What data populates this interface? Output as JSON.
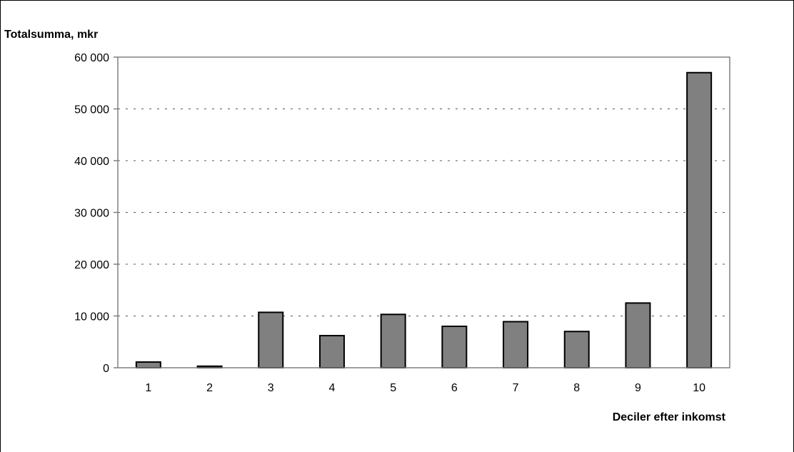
{
  "chart_data": {
    "type": "bar",
    "title": "",
    "ylabel": "Totalsumma, mkr",
    "xlabel": "Deciler efter inkomst",
    "categories": [
      "1",
      "2",
      "3",
      "4",
      "5",
      "6",
      "7",
      "8",
      "9",
      "10"
    ],
    "series": [
      {
        "values": [
          1100,
          300,
          10700,
          6200,
          10300,
          8000,
          8900,
          7000,
          12500,
          57000
        ]
      }
    ],
    "ylim": [
      0,
      60000
    ],
    "yticks": [
      0,
      10000,
      20000,
      30000,
      40000,
      50000,
      60000
    ],
    "ytick_labels": [
      "0",
      "10 000",
      "20 000",
      "30 000",
      "40 000",
      "50 000",
      "60 000"
    ],
    "grid": "horizontal-dashed",
    "legend": "none",
    "colors": {
      "bar_fill": "#808080",
      "bar_stroke": "#000000",
      "grid": "#555555",
      "axis": "#808080",
      "frame": "#000000"
    }
  }
}
